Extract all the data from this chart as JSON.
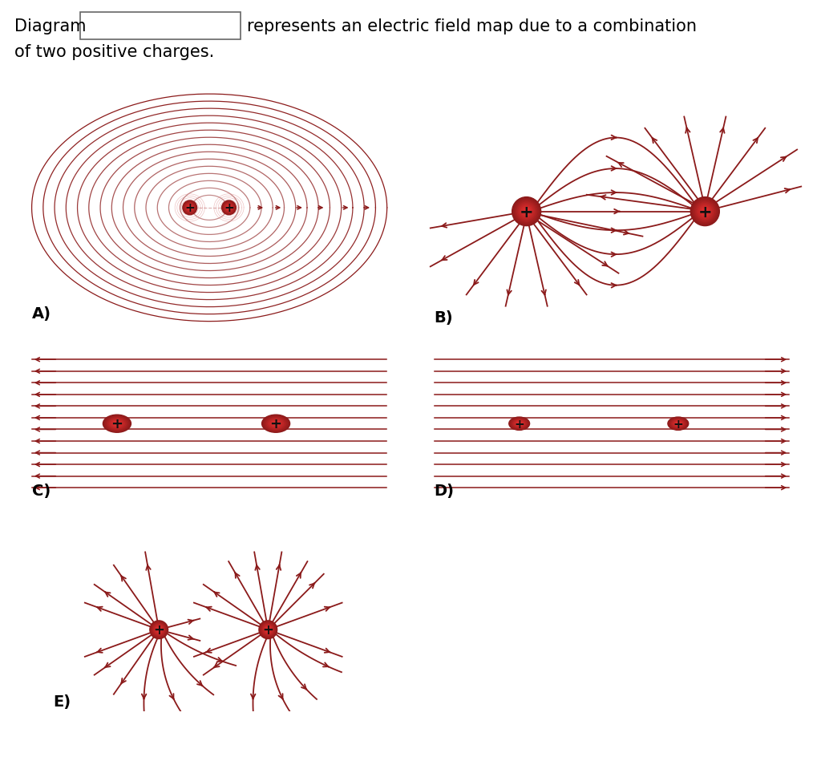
{
  "title_text": "Diagram",
  "subtitle_text": "represents an electric field map due to a combination",
  "subtitle2_text": "of two positive charges.",
  "label_A": "A)",
  "label_B": "B)",
  "label_C": "C)",
  "label_D": "D)",
  "label_E": "E)",
  "field_color": "#8B0000",
  "text_color": "#000000",
  "bg_color": "#ffffff",
  "RED": "#8B1A1A"
}
